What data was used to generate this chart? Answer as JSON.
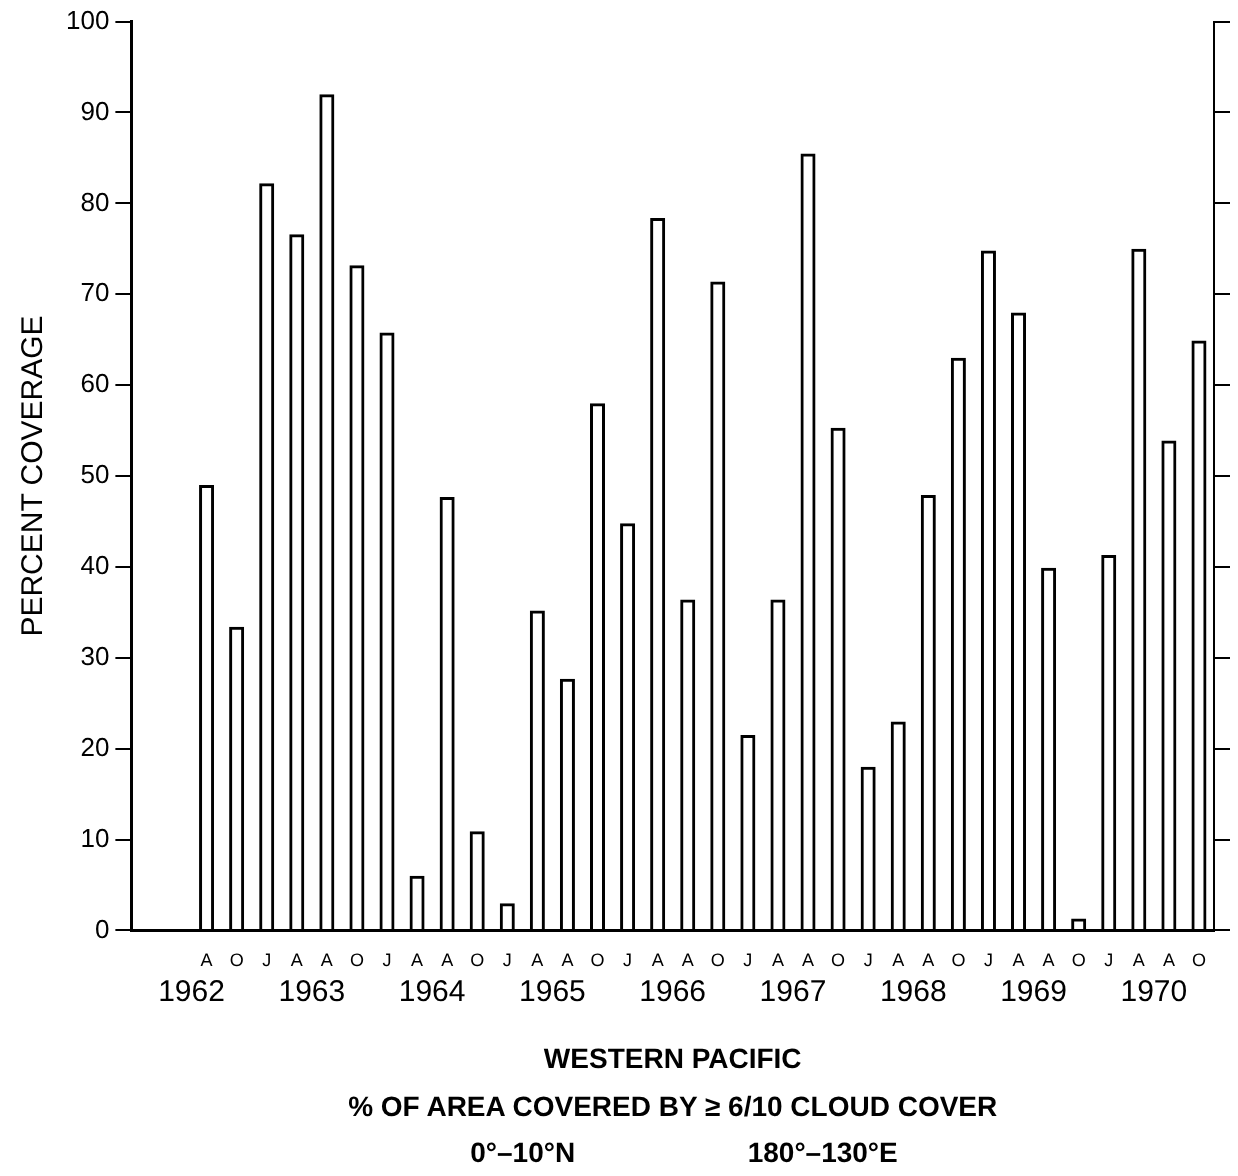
{
  "chart_data": {
    "type": "bar",
    "title": "WESTERN PACIFIC",
    "subtitle": "% OF AREA COVERED BY ≥ 6/10 CLOUD COVER",
    "ylabel": "PERCENT COVERAGE",
    "categories": [
      null,
      null,
      "A",
      "O",
      "J",
      "A",
      "A",
      "O",
      "J",
      "A",
      "A",
      "O",
      "J",
      "A",
      "A",
      "O",
      "J",
      "A",
      "A",
      "O",
      "J",
      "A",
      "A",
      "O",
      "J",
      "A",
      "A",
      "O",
      "J",
      "A",
      "A",
      "O",
      "J",
      "A",
      "A",
      "O"
    ],
    "values": [
      null,
      null,
      49,
      33.4,
      82.2,
      76.6,
      92,
      73.2,
      65.8,
      6,
      47.7,
      10.9,
      3,
      35.2,
      27.7,
      58,
      44.8,
      78.4,
      36.4,
      71.4,
      21.5,
      36.4,
      85.5,
      55.3,
      18,
      23,
      47.9,
      63,
      74.8,
      68,
      39.9,
      1.3,
      41.3,
      75,
      53.9,
      64.9
    ],
    "color": "#000000",
    "ylim": [
      0,
      100
    ],
    "yticks": [
      0,
      10,
      20,
      30,
      40,
      50,
      60,
      70,
      80,
      90,
      100
    ],
    "annotations": [
      "1962",
      "1963",
      "1964",
      "1965",
      "1966",
      "1967",
      "1968",
      "1969",
      "1970",
      "0°–10°N",
      "180°–130°E"
    ]
  }
}
